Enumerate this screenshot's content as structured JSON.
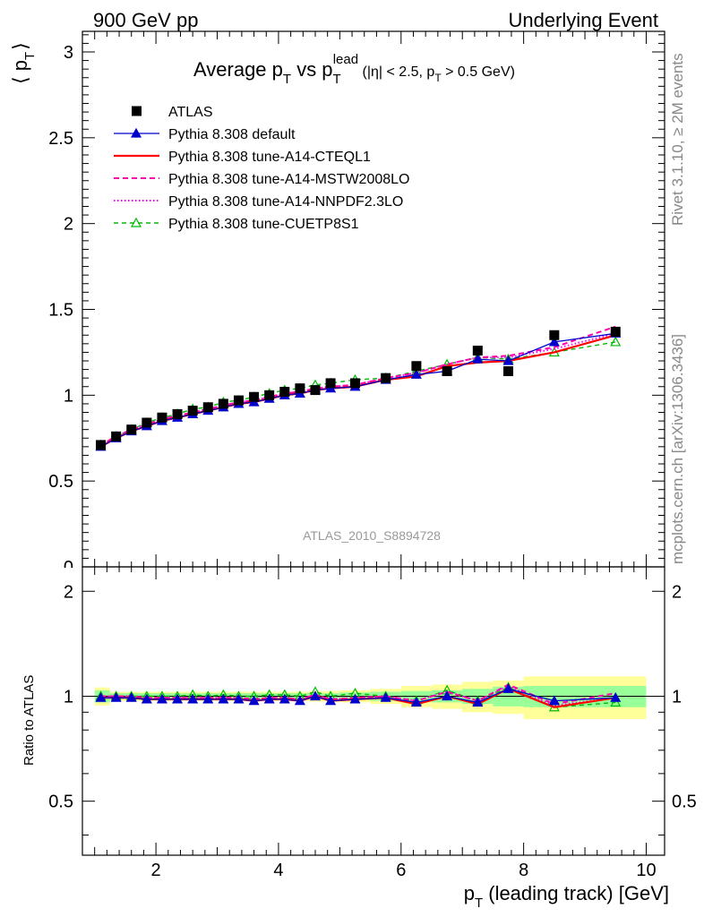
{
  "header": {
    "left": "900 GeV pp",
    "right": "Underlying Event"
  },
  "side_text": {
    "rivet": "Rivet 3.1.10, ≥ 2M events",
    "mcplots": "mcplots.cern.ch [arXiv:1306.3436]"
  },
  "watermark": "ATLAS_2010_S8894728",
  "title": {
    "prefix": "Average p",
    "sub1": "T",
    "middle": " vs p",
    "sub2": "T",
    "sup2": "lead",
    "cut": " (|η| < 2.5, p",
    "sub3": "T",
    "cut_end": " > 0.5 GeV)"
  },
  "ylabel_top": {
    "open": "⟨ p",
    "sub": "T",
    "close": "⟩"
  },
  "ylabel_bottom": "Ratio to ATLAS",
  "xlabel": {
    "p": "p",
    "sub": "T",
    "rest": " (leading track) [GeV]"
  },
  "colors": {
    "atlas": "#000000",
    "default": "#0000cc",
    "cteql1": "#ff0000",
    "mstw": "#ff00aa",
    "nnpdf": "#ff00ff",
    "cuetp": "#00bb00",
    "band_inner": "#99ff99",
    "band_outer": "#ffff99"
  },
  "chart_data": [
    {
      "type": "line",
      "title": "Average pT vs pT lead (|η| < 2.5, pT > 0.5 GeV)",
      "xlabel": "pT (leading track) [GeV]",
      "ylabel": "⟨ pT ⟩",
      "xlim": [
        0.8,
        10.3
      ],
      "ylim": [
        0,
        3.12
      ],
      "yticks": [
        0.5,
        1,
        1.5,
        2,
        2.5,
        3
      ],
      "ytick_labels": [
        "0.5",
        "1",
        "1.5",
        "2",
        "2.5",
        "3"
      ],
      "xticks": [
        2,
        4,
        6,
        8,
        10
      ],
      "legend_position": "top-left",
      "x": [
        1.1,
        1.35,
        1.6,
        1.85,
        2.1,
        2.35,
        2.6,
        2.85,
        3.1,
        3.35,
        3.6,
        3.85,
        4.1,
        4.35,
        4.6,
        4.85,
        5.25,
        5.75,
        6.25,
        6.75,
        7.25,
        7.75,
        8.5,
        9.5
      ],
      "series": [
        {
          "name": "ATLAS",
          "key": "atlas",
          "style": "square",
          "values": [
            0.71,
            0.76,
            0.8,
            0.84,
            0.87,
            0.89,
            0.91,
            0.93,
            0.95,
            0.97,
            0.99,
            1.0,
            1.02,
            1.04,
            1.03,
            1.07,
            1.07,
            1.1,
            1.17,
            1.14,
            1.26,
            1.14,
            1.35,
            1.37
          ]
        },
        {
          "name": "Pythia 8.308 default",
          "key": "default",
          "style": "line-triangle",
          "values": [
            0.7,
            0.75,
            0.79,
            0.82,
            0.85,
            0.87,
            0.89,
            0.91,
            0.93,
            0.95,
            0.96,
            0.98,
            1.0,
            1.01,
            1.03,
            1.04,
            1.05,
            1.09,
            1.12,
            1.14,
            1.21,
            1.2,
            1.31,
            1.36
          ]
        },
        {
          "name": "Pythia 8.308 tune-A14-CTEQL1",
          "key": "cteql1",
          "style": "solid",
          "values": [
            0.7,
            0.75,
            0.79,
            0.82,
            0.85,
            0.87,
            0.89,
            0.91,
            0.93,
            0.95,
            0.96,
            0.98,
            1.0,
            1.01,
            1.03,
            1.04,
            1.05,
            1.09,
            1.11,
            1.17,
            1.19,
            1.2,
            1.25,
            1.35
          ]
        },
        {
          "name": "Pythia 8.308 tune-A14-MSTW2008LO",
          "key": "mstw",
          "style": "dashed",
          "values": [
            0.71,
            0.76,
            0.8,
            0.83,
            0.86,
            0.88,
            0.9,
            0.92,
            0.94,
            0.96,
            0.97,
            0.99,
            1.01,
            1.02,
            1.04,
            1.05,
            1.06,
            1.1,
            1.13,
            1.18,
            1.22,
            1.23,
            1.28,
            1.4
          ]
        },
        {
          "name": "Pythia 8.308 tune-A14-NNPDF2.3LO",
          "key": "nnpdf",
          "style": "dotted",
          "values": [
            0.71,
            0.76,
            0.8,
            0.83,
            0.86,
            0.88,
            0.9,
            0.92,
            0.94,
            0.96,
            0.97,
            0.99,
            1.01,
            1.02,
            1.04,
            1.05,
            1.06,
            1.1,
            1.13,
            1.18,
            1.22,
            1.22,
            1.27,
            1.36
          ]
        },
        {
          "name": "Pythia 8.308 tune-CUETP8S1",
          "key": "cuetp",
          "style": "dashed-open-triangle",
          "values": [
            0.71,
            0.76,
            0.8,
            0.84,
            0.87,
            0.89,
            0.92,
            0.93,
            0.96,
            0.97,
            0.99,
            1.01,
            1.03,
            1.04,
            1.06,
            1.07,
            1.09,
            1.1,
            1.14,
            1.18,
            1.22,
            1.21,
            1.25,
            1.31
          ]
        }
      ]
    },
    {
      "type": "line",
      "ylabel": "Ratio to ATLAS",
      "xlabel": "pT (leading track) [GeV]",
      "xlim": [
        0.8,
        10.3
      ],
      "ylim": [
        0.35,
        2.35
      ],
      "yticks": [
        0.5,
        1,
        2
      ],
      "ytick_labels": [
        "0.5",
        "1",
        "2"
      ],
      "xticks": [
        2,
        4,
        6,
        8,
        10
      ],
      "xtick_labels": [
        "2",
        "4",
        "6",
        "8",
        "10"
      ],
      "x": [
        1.1,
        1.35,
        1.6,
        1.85,
        2.1,
        2.35,
        2.6,
        2.85,
        3.1,
        3.35,
        3.6,
        3.85,
        4.1,
        4.35,
        4.6,
        4.85,
        5.25,
        5.75,
        6.25,
        6.75,
        7.25,
        7.75,
        8.5,
        9.5
      ],
      "bin_edges": [
        1.0,
        1.25,
        1.5,
        1.75,
        2.0,
        2.25,
        2.5,
        2.75,
        3.0,
        3.25,
        3.5,
        3.75,
        4.0,
        4.25,
        4.5,
        4.75,
        5.0,
        5.5,
        6.0,
        6.5,
        7.0,
        7.5,
        8.0,
        9.0,
        10.0
      ],
      "band_inner": [
        0.04,
        0.02,
        0.02,
        0.02,
        0.02,
        0.02,
        0.02,
        0.02,
        0.02,
        0.02,
        0.02,
        0.02,
        0.02,
        0.02,
        0.02,
        0.02,
        0.025,
        0.03,
        0.035,
        0.04,
        0.05,
        0.065,
        0.07,
        0.07
      ],
      "band_outer": [
        0.06,
        0.03,
        0.03,
        0.03,
        0.03,
        0.03,
        0.03,
        0.03,
        0.03,
        0.03,
        0.03,
        0.03,
        0.03,
        0.03,
        0.035,
        0.035,
        0.04,
        0.05,
        0.07,
        0.08,
        0.1,
        0.11,
        0.14,
        0.14
      ],
      "series": [
        {
          "name": "Pythia 8.308 default",
          "key": "default",
          "style": "line-triangle",
          "values": [
            0.99,
            0.99,
            0.99,
            0.98,
            0.98,
            0.98,
            0.98,
            0.98,
            0.98,
            0.98,
            0.97,
            0.98,
            0.98,
            0.97,
            1.0,
            0.97,
            0.98,
            0.99,
            0.96,
            1.0,
            0.96,
            1.05,
            0.97,
            0.99
          ]
        },
        {
          "name": "Pythia 8.308 tune-A14-CTEQL1",
          "key": "cteql1",
          "style": "solid",
          "values": [
            0.99,
            0.99,
            0.99,
            0.98,
            0.98,
            0.98,
            0.98,
            0.98,
            0.98,
            0.98,
            0.97,
            0.98,
            0.98,
            0.97,
            1.0,
            0.97,
            0.98,
            0.99,
            0.95,
            1.0,
            0.95,
            1.05,
            0.93,
            0.99
          ]
        },
        {
          "name": "Pythia 8.308 tune-A14-MSTW2008LO",
          "key": "mstw",
          "style": "dashed",
          "values": [
            1.0,
            1.0,
            1.0,
            0.99,
            0.99,
            0.99,
            0.99,
            0.99,
            0.99,
            0.99,
            0.98,
            0.99,
            0.99,
            0.98,
            1.01,
            0.98,
            0.99,
            1.0,
            0.97,
            1.03,
            0.97,
            1.08,
            0.95,
            1.02
          ]
        },
        {
          "name": "Pythia 8.308 tune-A14-NNPDF2.3LO",
          "key": "nnpdf",
          "style": "dotted",
          "values": [
            1.0,
            1.0,
            1.0,
            0.99,
            0.99,
            0.99,
            0.99,
            0.99,
            0.99,
            0.99,
            0.98,
            0.99,
            0.99,
            0.98,
            1.01,
            0.98,
            0.99,
            1.0,
            0.97,
            1.03,
            0.97,
            1.07,
            0.94,
            0.99
          ]
        },
        {
          "name": "Pythia 8.308 tune-CUETP8S1",
          "key": "cuetp",
          "style": "dashed-open-triangle",
          "values": [
            1.0,
            1.0,
            1.0,
            1.0,
            1.0,
            1.0,
            1.01,
            1.0,
            1.01,
            1.0,
            1.0,
            1.01,
            1.01,
            1.0,
            1.03,
            1.0,
            1.02,
            1.0,
            0.97,
            1.04,
            0.97,
            1.06,
            0.93,
            0.96
          ]
        }
      ]
    }
  ]
}
